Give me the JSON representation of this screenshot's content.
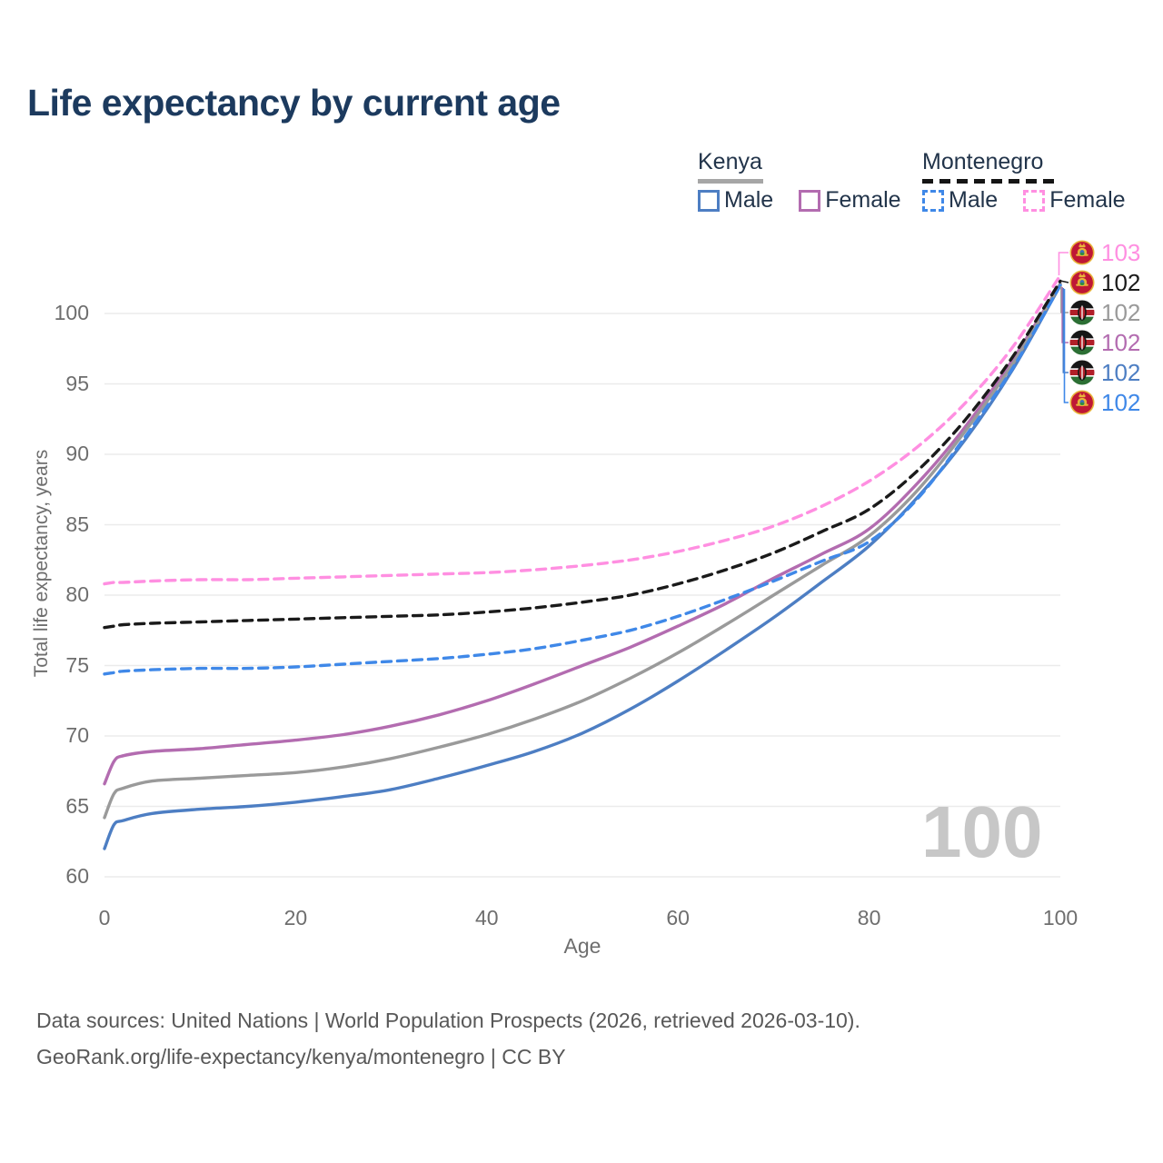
{
  "page": {
    "title": "Life expectancy by current age"
  },
  "legend": {
    "groups": [
      {
        "label": "Kenya",
        "line_style": "solid",
        "underline_color": "#a6a6a6",
        "items": [
          {
            "label": "Male",
            "color": "#4d7ec3",
            "dashed": false
          },
          {
            "label": "Female",
            "color": "#b36cb0",
            "dashed": false
          }
        ]
      },
      {
        "label": "Montenegro",
        "line_style": "dashed",
        "underline_color": "#151515",
        "items": [
          {
            "label": "Male",
            "color": "#3f88e8",
            "dashed": true
          },
          {
            "label": "Female",
            "color": "#ff8fe1",
            "dashed": true
          }
        ]
      }
    ]
  },
  "chart_data": {
    "type": "line",
    "title": "Life expectancy by current age",
    "xlabel": "Age",
    "ylabel": "Total life expectancy, years",
    "xlim": [
      0,
      100
    ],
    "ylim": [
      60,
      103.5
    ],
    "x_ticks": [
      0,
      20,
      40,
      60,
      80,
      100
    ],
    "y_ticks": [
      60,
      65,
      70,
      75,
      80,
      85,
      90,
      95,
      100
    ],
    "grid": "horizontal",
    "legend_position": "top-right",
    "ages": [
      0,
      1,
      2,
      5,
      10,
      15,
      20,
      25,
      30,
      35,
      40,
      45,
      50,
      55,
      60,
      65,
      70,
      75,
      80,
      85,
      90,
      95,
      100
    ],
    "series": [
      {
        "id": "kenya-male",
        "name": "Kenya Male",
        "country": "Kenya",
        "sex": "Male",
        "color": "#4d7ec3",
        "dashed": false,
        "end_label": 102,
        "values": [
          62.0,
          63.7,
          64.0,
          64.5,
          64.8,
          65.0,
          65.3,
          65.7,
          66.2,
          67.0,
          67.9,
          68.9,
          70.2,
          71.9,
          73.9,
          76.1,
          78.4,
          80.9,
          83.5,
          86.9,
          91.0,
          96.0,
          102.0
        ]
      },
      {
        "id": "kenya-female",
        "name": "Kenya Female",
        "country": "Kenya",
        "sex": "Female",
        "color": "#b36cb0",
        "dashed": false,
        "end_label": 102,
        "values": [
          66.6,
          68.2,
          68.6,
          68.9,
          69.1,
          69.4,
          69.7,
          70.1,
          70.7,
          71.5,
          72.5,
          73.7,
          75.0,
          76.3,
          77.8,
          79.4,
          81.2,
          82.9,
          84.7,
          87.9,
          91.9,
          96.7,
          102.1
        ]
      },
      {
        "id": "kenya-both",
        "name": "Kenya",
        "country": "Kenya",
        "sex": "Both",
        "color": "#9a9a9a",
        "dashed": false,
        "end_label": 102,
        "values": [
          64.2,
          65.9,
          66.3,
          66.8,
          67.0,
          67.2,
          67.4,
          67.8,
          68.4,
          69.2,
          70.1,
          71.2,
          72.5,
          74.1,
          75.9,
          77.9,
          80.0,
          82.1,
          84.2,
          87.4,
          91.6,
          96.4,
          102.1
        ]
      },
      {
        "id": "montenegro-male",
        "name": "Montenegro Male",
        "country": "Montenegro",
        "sex": "Male",
        "color": "#3f88e8",
        "dashed": true,
        "end_label": 102,
        "values": [
          74.4,
          74.5,
          74.6,
          74.7,
          74.8,
          74.8,
          74.9,
          75.1,
          75.3,
          75.5,
          75.8,
          76.2,
          76.8,
          77.5,
          78.5,
          79.7,
          81.0,
          82.4,
          83.8,
          86.8,
          91.2,
          96.1,
          102.0
        ]
      },
      {
        "id": "montenegro-female",
        "name": "Montenegro Female",
        "country": "Montenegro",
        "sex": "Female",
        "color": "#ff8fe1",
        "dashed": true,
        "end_label": 103,
        "values": [
          80.8,
          80.9,
          80.9,
          81.0,
          81.1,
          81.1,
          81.2,
          81.3,
          81.4,
          81.5,
          81.6,
          81.8,
          82.1,
          82.5,
          83.1,
          83.9,
          84.9,
          86.3,
          88.1,
          90.5,
          93.6,
          97.6,
          102.7
        ]
      },
      {
        "id": "montenegro-both",
        "name": "Montenegro",
        "country": "Montenegro",
        "sex": "Both",
        "color": "#1a1a1a",
        "dashed": true,
        "end_label": 102,
        "values": [
          77.7,
          77.8,
          77.9,
          78.0,
          78.1,
          78.2,
          78.3,
          78.4,
          78.5,
          78.6,
          78.8,
          79.1,
          79.5,
          80.0,
          80.8,
          81.8,
          83.0,
          84.5,
          86.1,
          88.8,
          92.4,
          96.9,
          102.3
        ]
      }
    ]
  },
  "end_labels": [
    {
      "flag": "montenegro",
      "series": "Montenegro Female",
      "value": "103",
      "color": "#ff8fe1"
    },
    {
      "flag": "montenegro",
      "series": "Montenegro",
      "value": "102",
      "color": "#1a1a1a"
    },
    {
      "flag": "kenya",
      "series": "Kenya",
      "value": "102",
      "color": "#9a9a9a"
    },
    {
      "flag": "kenya",
      "series": "Kenya Female",
      "value": "102",
      "color": "#b36cb0"
    },
    {
      "flag": "kenya",
      "series": "Kenya Male",
      "value": "102",
      "color": "#4d7ec3"
    },
    {
      "flag": "montenegro",
      "series": "Montenegro Male",
      "value": "102",
      "color": "#3f88e8"
    }
  ],
  "watermark": {
    "text": "100"
  },
  "footer": {
    "line1": "Data sources: United Nations | World Population Prospects (2026, retrieved 2026-03-10).",
    "line2": "GeoRank.org/life-expectancy/kenya/montenegro | CC BY"
  }
}
